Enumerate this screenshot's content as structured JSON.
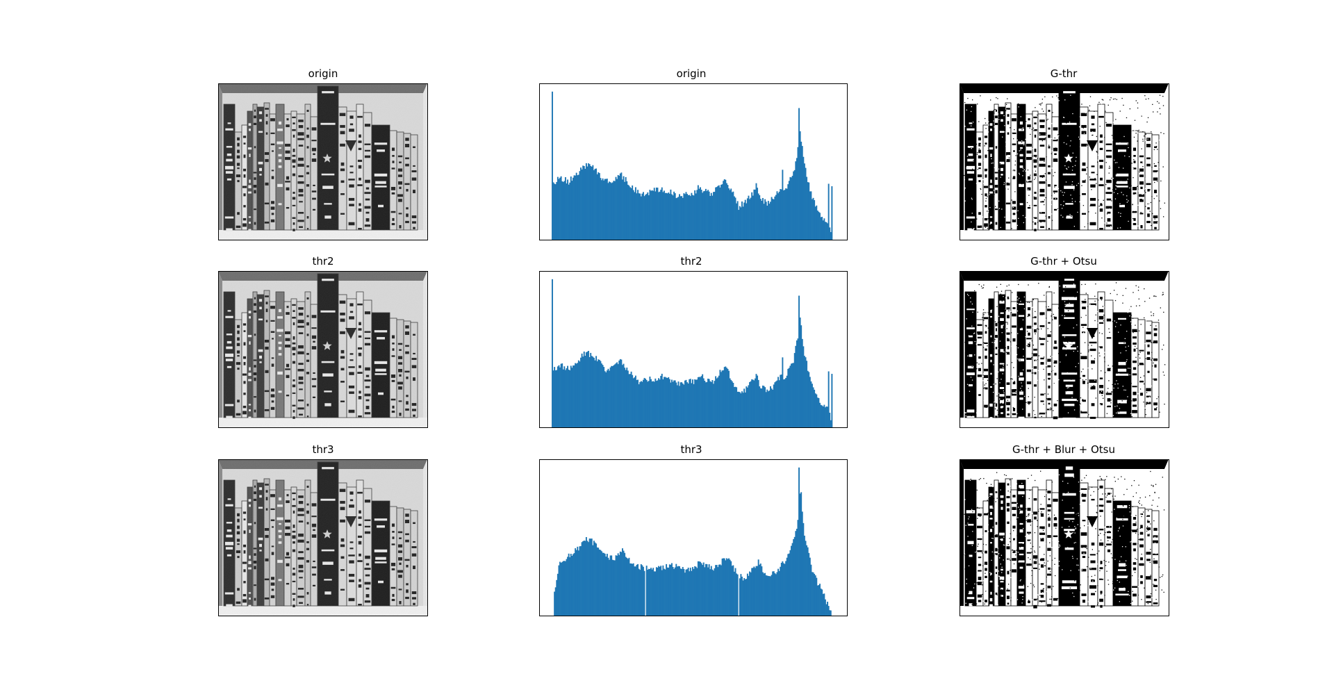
{
  "colors": {
    "bar": "#1f77b4",
    "frame": "#000000",
    "background": "#ffffff"
  },
  "chart_data": [
    {
      "type": "image",
      "title": "origin",
      "description": "grayscale photo of books on a shelf"
    },
    {
      "type": "bar",
      "title": "origin",
      "bins": 256,
      "xlim": [
        0,
        255
      ],
      "grid": false,
      "spikes": [
        [
          0,
          180
        ],
        [
          225,
          160
        ],
        [
          210,
          85
        ],
        [
          255,
          65
        ],
        [
          252,
          68
        ]
      ],
      "profile": [
        [
          0,
          0
        ],
        [
          1,
          70
        ],
        [
          8,
          75
        ],
        [
          15,
          70
        ],
        [
          22,
          80
        ],
        [
          30,
          90
        ],
        [
          36,
          88
        ],
        [
          42,
          80
        ],
        [
          48,
          70
        ],
        [
          55,
          72
        ],
        [
          62,
          80
        ],
        [
          70,
          68
        ],
        [
          80,
          55
        ],
        [
          90,
          58
        ],
        [
          100,
          62
        ],
        [
          108,
          58
        ],
        [
          115,
          52
        ],
        [
          122,
          55
        ],
        [
          128,
          55
        ],
        [
          134,
          64
        ],
        [
          140,
          58
        ],
        [
          146,
          55
        ],
        [
          152,
          65
        ],
        [
          158,
          72
        ],
        [
          164,
          58
        ],
        [
          170,
          40
        ],
        [
          176,
          45
        ],
        [
          182,
          55
        ],
        [
          186,
          65
        ],
        [
          190,
          50
        ],
        [
          196,
          45
        ],
        [
          202,
          50
        ],
        [
          208,
          62
        ],
        [
          212,
          58
        ],
        [
          216,
          72
        ],
        [
          220,
          80
        ],
        [
          224,
          110
        ],
        [
          226,
          130
        ],
        [
          230,
          90
        ],
        [
          236,
          55
        ],
        [
          242,
          35
        ],
        [
          248,
          25
        ],
        [
          252,
          20
        ],
        [
          255,
          8
        ]
      ]
    },
    {
      "type": "image",
      "title": "G-thr",
      "description": "binary threshold result of the shelf photo"
    },
    {
      "type": "image",
      "title": "thr2",
      "description": "grayscale photo of books on a shelf"
    },
    {
      "type": "bar",
      "title": "thr2",
      "bins": 256,
      "xlim": [
        0,
        255
      ],
      "grid": false,
      "spikes": [
        [
          0,
          180
        ],
        [
          225,
          160
        ],
        [
          210,
          85
        ],
        [
          255,
          65
        ],
        [
          252,
          68
        ]
      ],
      "profile": [
        [
          0,
          0
        ],
        [
          1,
          70
        ],
        [
          8,
          75
        ],
        [
          15,
          70
        ],
        [
          22,
          80
        ],
        [
          30,
          90
        ],
        [
          36,
          88
        ],
        [
          42,
          80
        ],
        [
          48,
          70
        ],
        [
          55,
          72
        ],
        [
          62,
          80
        ],
        [
          70,
          68
        ],
        [
          80,
          55
        ],
        [
          90,
          58
        ],
        [
          100,
          62
        ],
        [
          108,
          58
        ],
        [
          115,
          52
        ],
        [
          122,
          55
        ],
        [
          128,
          55
        ],
        [
          134,
          64
        ],
        [
          140,
          58
        ],
        [
          146,
          55
        ],
        [
          152,
          65
        ],
        [
          158,
          72
        ],
        [
          164,
          58
        ],
        [
          170,
          40
        ],
        [
          176,
          45
        ],
        [
          182,
          55
        ],
        [
          186,
          65
        ],
        [
          190,
          50
        ],
        [
          196,
          45
        ],
        [
          202,
          50
        ],
        [
          208,
          62
        ],
        [
          212,
          58
        ],
        [
          216,
          72
        ],
        [
          220,
          80
        ],
        [
          224,
          110
        ],
        [
          226,
          130
        ],
        [
          230,
          90
        ],
        [
          236,
          55
        ],
        [
          242,
          35
        ],
        [
          248,
          25
        ],
        [
          252,
          20
        ],
        [
          255,
          8
        ]
      ]
    },
    {
      "type": "image",
      "title": "G-thr + Otsu",
      "description": "binary threshold result with Otsu"
    },
    {
      "type": "image",
      "title": "thr3",
      "description": "grayscale photo of books on a shelf"
    },
    {
      "type": "bar",
      "title": "thr3",
      "bins": 256,
      "xlim": [
        0,
        255
      ],
      "grid": false,
      "spikes": [
        [
          225,
          180
        ],
        [
          227,
          150
        ]
      ],
      "gaps": [
        85,
        170
      ],
      "profile": [
        [
          0,
          0
        ],
        [
          1,
          0
        ],
        [
          2,
          30
        ],
        [
          6,
          60
        ],
        [
          12,
          70
        ],
        [
          18,
          75
        ],
        [
          24,
          82
        ],
        [
          30,
          92
        ],
        [
          36,
          90
        ],
        [
          42,
          82
        ],
        [
          48,
          72
        ],
        [
          56,
          70
        ],
        [
          64,
          78
        ],
        [
          72,
          65
        ],
        [
          82,
          58
        ],
        [
          92,
          55
        ],
        [
          100,
          58
        ],
        [
          108,
          62
        ],
        [
          116,
          58
        ],
        [
          122,
          55
        ],
        [
          128,
          55
        ],
        [
          134,
          65
        ],
        [
          140,
          62
        ],
        [
          146,
          58
        ],
        [
          152,
          62
        ],
        [
          158,
          70
        ],
        [
          164,
          62
        ],
        [
          170,
          48
        ],
        [
          176,
          45
        ],
        [
          182,
          55
        ],
        [
          188,
          65
        ],
        [
          192,
          55
        ],
        [
          198,
          48
        ],
        [
          204,
          52
        ],
        [
          210,
          62
        ],
        [
          216,
          75
        ],
        [
          220,
          90
        ],
        [
          224,
          115
        ],
        [
          226,
          145
        ],
        [
          230,
          100
        ],
        [
          236,
          60
        ],
        [
          242,
          40
        ],
        [
          248,
          25
        ],
        [
          252,
          10
        ],
        [
          255,
          0
        ]
      ]
    },
    {
      "type": "image",
      "title": "G-thr + Blur + Otsu",
      "description": "binary threshold after blur with Otsu"
    }
  ]
}
